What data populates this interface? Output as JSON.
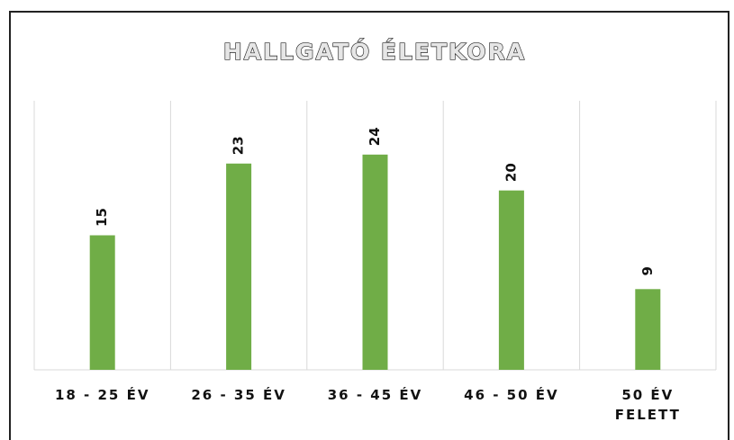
{
  "chart_data": {
    "type": "bar",
    "title": "HALLGATÓ ÉLETKORA",
    "categories": [
      "18 - 25 ÉV",
      "26 - 35 ÉV",
      "36 - 45 ÉV",
      "46 - 50 ÉV",
      "50 ÉV FELETT"
    ],
    "values": [
      15,
      23,
      24,
      20,
      9
    ],
    "color": "#70ad47",
    "ylim": [
      0,
      30
    ],
    "grid": false
  }
}
